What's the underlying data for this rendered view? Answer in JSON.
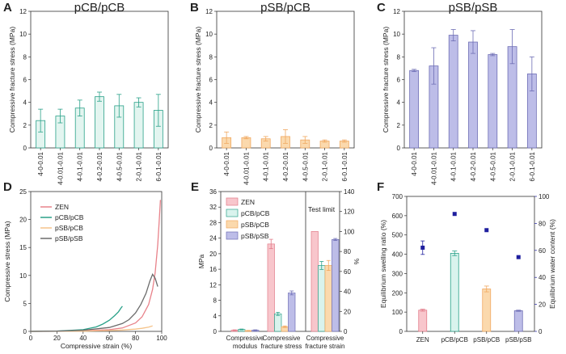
{
  "chart_data": [
    {
      "panel": "A",
      "type": "bar",
      "title": "pCB/pCB",
      "ylabel": "Compressive fracture stress (MPa)",
      "ylim": [
        0,
        12
      ],
      "yticks": [
        0,
        2,
        4,
        6,
        8,
        10,
        12
      ],
      "categories": [
        "4-0-0.01",
        "4-0.01-0.01",
        "4-0.1-0.01",
        "4-0.2-0.01",
        "4-0.5-0.01",
        "2-0.1-0.01",
        "6-0.1-0.01"
      ],
      "values": [
        2.4,
        2.8,
        3.5,
        4.5,
        3.7,
        4.0,
        3.3
      ],
      "errors": [
        1.0,
        0.6,
        0.7,
        0.4,
        1.0,
        0.4,
        1.4
      ],
      "fill": "#e3f5f0",
      "stroke": "#2aa189"
    },
    {
      "panel": "B",
      "type": "bar",
      "title": "pSB/pCB",
      "ylabel": "Compressive fracture stress (MPa)",
      "ylim": [
        0,
        12
      ],
      "yticks": [
        0,
        2,
        4,
        6,
        8,
        10,
        12
      ],
      "categories": [
        "4-0-0.01",
        "4-0.01-0.01",
        "4-0.1-0.01",
        "4-0.2-0.01",
        "4-0.5-0.01",
        "2-0.1-0.01",
        "6-0.1-0.01"
      ],
      "values": [
        0.9,
        0.9,
        0.8,
        1.0,
        0.7,
        0.6,
        0.6
      ],
      "errors": [
        0.5,
        0.1,
        0.2,
        0.6,
        0.3,
        0.1,
        0.1
      ],
      "fill": "#fbd9ad",
      "stroke": "#f0a860"
    },
    {
      "panel": "C",
      "type": "bar",
      "title": "pSB/pSB",
      "ylabel": "Compressive fracture stress (MPa)",
      "ylim": [
        0,
        12
      ],
      "yticks": [
        0,
        2,
        4,
        6,
        8,
        10,
        12
      ],
      "categories": [
        "4-0-0.01",
        "4-0.01-0.01",
        "4-0.1-0.01",
        "4-0.2-0.01",
        "4-0.5-0.01",
        "2-0.1-0.01",
        "6-0.1-0.01"
      ],
      "values": [
        6.8,
        7.2,
        9.9,
        9.3,
        8.2,
        8.9,
        6.5
      ],
      "errors": [
        0.1,
        1.6,
        0.5,
        1.0,
        0.1,
        1.5,
        1.5
      ],
      "fill": "#bdbde8",
      "stroke": "#6e6eb5"
    },
    {
      "panel": "D",
      "type": "line",
      "xlabel": "Compressive strain (%)",
      "ylabel": "Compressive stress (MPa)",
      "xlim": [
        0,
        100
      ],
      "ylim": [
        0,
        25
      ],
      "xticks": [
        0,
        20,
        40,
        60,
        80,
        100
      ],
      "yticks": [
        0,
        5,
        10,
        15,
        20,
        25
      ],
      "legend": "top-left",
      "series": [
        {
          "name": "ZEN",
          "color": "#e8828a",
          "x": [
            0,
            20,
            40,
            60,
            70,
            80,
            85,
            90,
            93,
            95,
            97,
            98,
            99
          ],
          "y": [
            0,
            0.02,
            0.1,
            0.3,
            0.6,
            1.5,
            2.6,
            4.8,
            7.5,
            10.5,
            15.5,
            19.5,
            23.5
          ]
        },
        {
          "name": "pCB/pCB",
          "color": "#2aa189",
          "x": [
            0,
            20,
            40,
            50,
            55,
            60,
            64,
            67,
            69,
            70
          ],
          "y": [
            0,
            0.05,
            0.3,
            0.8,
            1.3,
            2.0,
            2.8,
            3.5,
            4.2,
            4.5
          ]
        },
        {
          "name": "pSB/pCB",
          "color": "#f5c38a",
          "x": [
            0,
            20,
            40,
            60,
            70,
            80,
            85,
            90,
            92,
            93
          ],
          "y": [
            0,
            0.02,
            0.05,
            0.15,
            0.25,
            0.4,
            0.55,
            0.75,
            0.9,
            1.0
          ]
        },
        {
          "name": "pSB/pSB",
          "color": "#6b6b6b",
          "x": [
            0,
            20,
            40,
            60,
            70,
            75,
            80,
            84,
            88,
            91,
            93,
            95,
            97
          ],
          "y": [
            0,
            0.05,
            0.2,
            0.7,
            1.4,
            2.1,
            3.3,
            4.8,
            6.8,
            9.0,
            10.2,
            9.5,
            8.0
          ]
        }
      ]
    },
    {
      "panel": "E",
      "type": "bar",
      "ylabel": "MPa",
      "y2label": "%",
      "ylim": [
        0,
        36
      ],
      "yticks": [
        0,
        4,
        8,
        12,
        16,
        20,
        24,
        28,
        32,
        36
      ],
      "y2lim": [
        0,
        140
      ],
      "y2ticks": [
        0,
        20,
        40,
        60,
        80,
        100,
        120,
        140
      ],
      "categories": [
        "Compressive modulus",
        "Compressive fracture stress",
        "Compressive fracture strain"
      ],
      "category_lines": [
        [
          "Compressive",
          "modulus"
        ],
        [
          "Compressive",
          "fracture stress"
        ],
        [
          "Compressive",
          "fracture strain"
        ]
      ],
      "annotation": "Test limit",
      "legend": "top-left",
      "series": [
        {
          "name": "ZEN",
          "fill": "#f8c6cc",
          "stroke": "#e27b89",
          "values": [
            0.3,
            22.5,
            100
          ],
          "errors": [
            0.1,
            1.2,
            0
          ],
          "axis": [
            "left",
            "left",
            "right"
          ]
        },
        {
          "name": "pCB/pCB",
          "fill": "#d9f3ed",
          "stroke": "#2aa189",
          "values": [
            0.5,
            4.5,
            66
          ],
          "errors": [
            0.1,
            0.4,
            4
          ],
          "axis": [
            "left",
            "left",
            "right"
          ]
        },
        {
          "name": "pSB/pCB",
          "fill": "#fbd9ad",
          "stroke": "#f0a860",
          "values": [
            0.2,
            1.2,
            66
          ],
          "errors": [
            0.05,
            0.2,
            5
          ],
          "axis": [
            "left",
            "left",
            "right"
          ]
        },
        {
          "name": "pSB/pSB",
          "fill": "#bdbde8",
          "stroke": "#6e6eb5",
          "values": [
            0.3,
            9.9,
            92
          ],
          "errors": [
            0.1,
            0.5,
            1
          ],
          "axis": [
            "left",
            "left",
            "right"
          ]
        }
      ]
    },
    {
      "panel": "F",
      "type": "bar",
      "ylabel": "Equilibrium swelling ratio (%)",
      "y2label": "Equilibrium water content (%)",
      "ylim": [
        0,
        700
      ],
      "yticks": [
        0,
        100,
        200,
        300,
        400,
        500,
        600,
        700
      ],
      "y2lim": [
        0,
        100
      ],
      "y2ticks": [
        0,
        20,
        40,
        60,
        80,
        100
      ],
      "categories": [
        "ZEN",
        "pCB/pCB",
        "pSB/pCB",
        "pSB/pSB"
      ],
      "fills": [
        "#f8c6cc",
        "#d9f3ed",
        "#fbd9ad",
        "#bdbde8"
      ],
      "strokes": [
        "#e27b89",
        "#2aa189",
        "#f0a860",
        "#6e6eb5"
      ],
      "values": [
        110,
        405,
        220,
        107
      ],
      "errors": [
        5,
        12,
        15,
        3
      ],
      "water_content": [
        62,
        87,
        75,
        55
      ],
      "water_errors": [
        5,
        0,
        0,
        0
      ],
      "water_color": "#1f1f9e"
    }
  ]
}
